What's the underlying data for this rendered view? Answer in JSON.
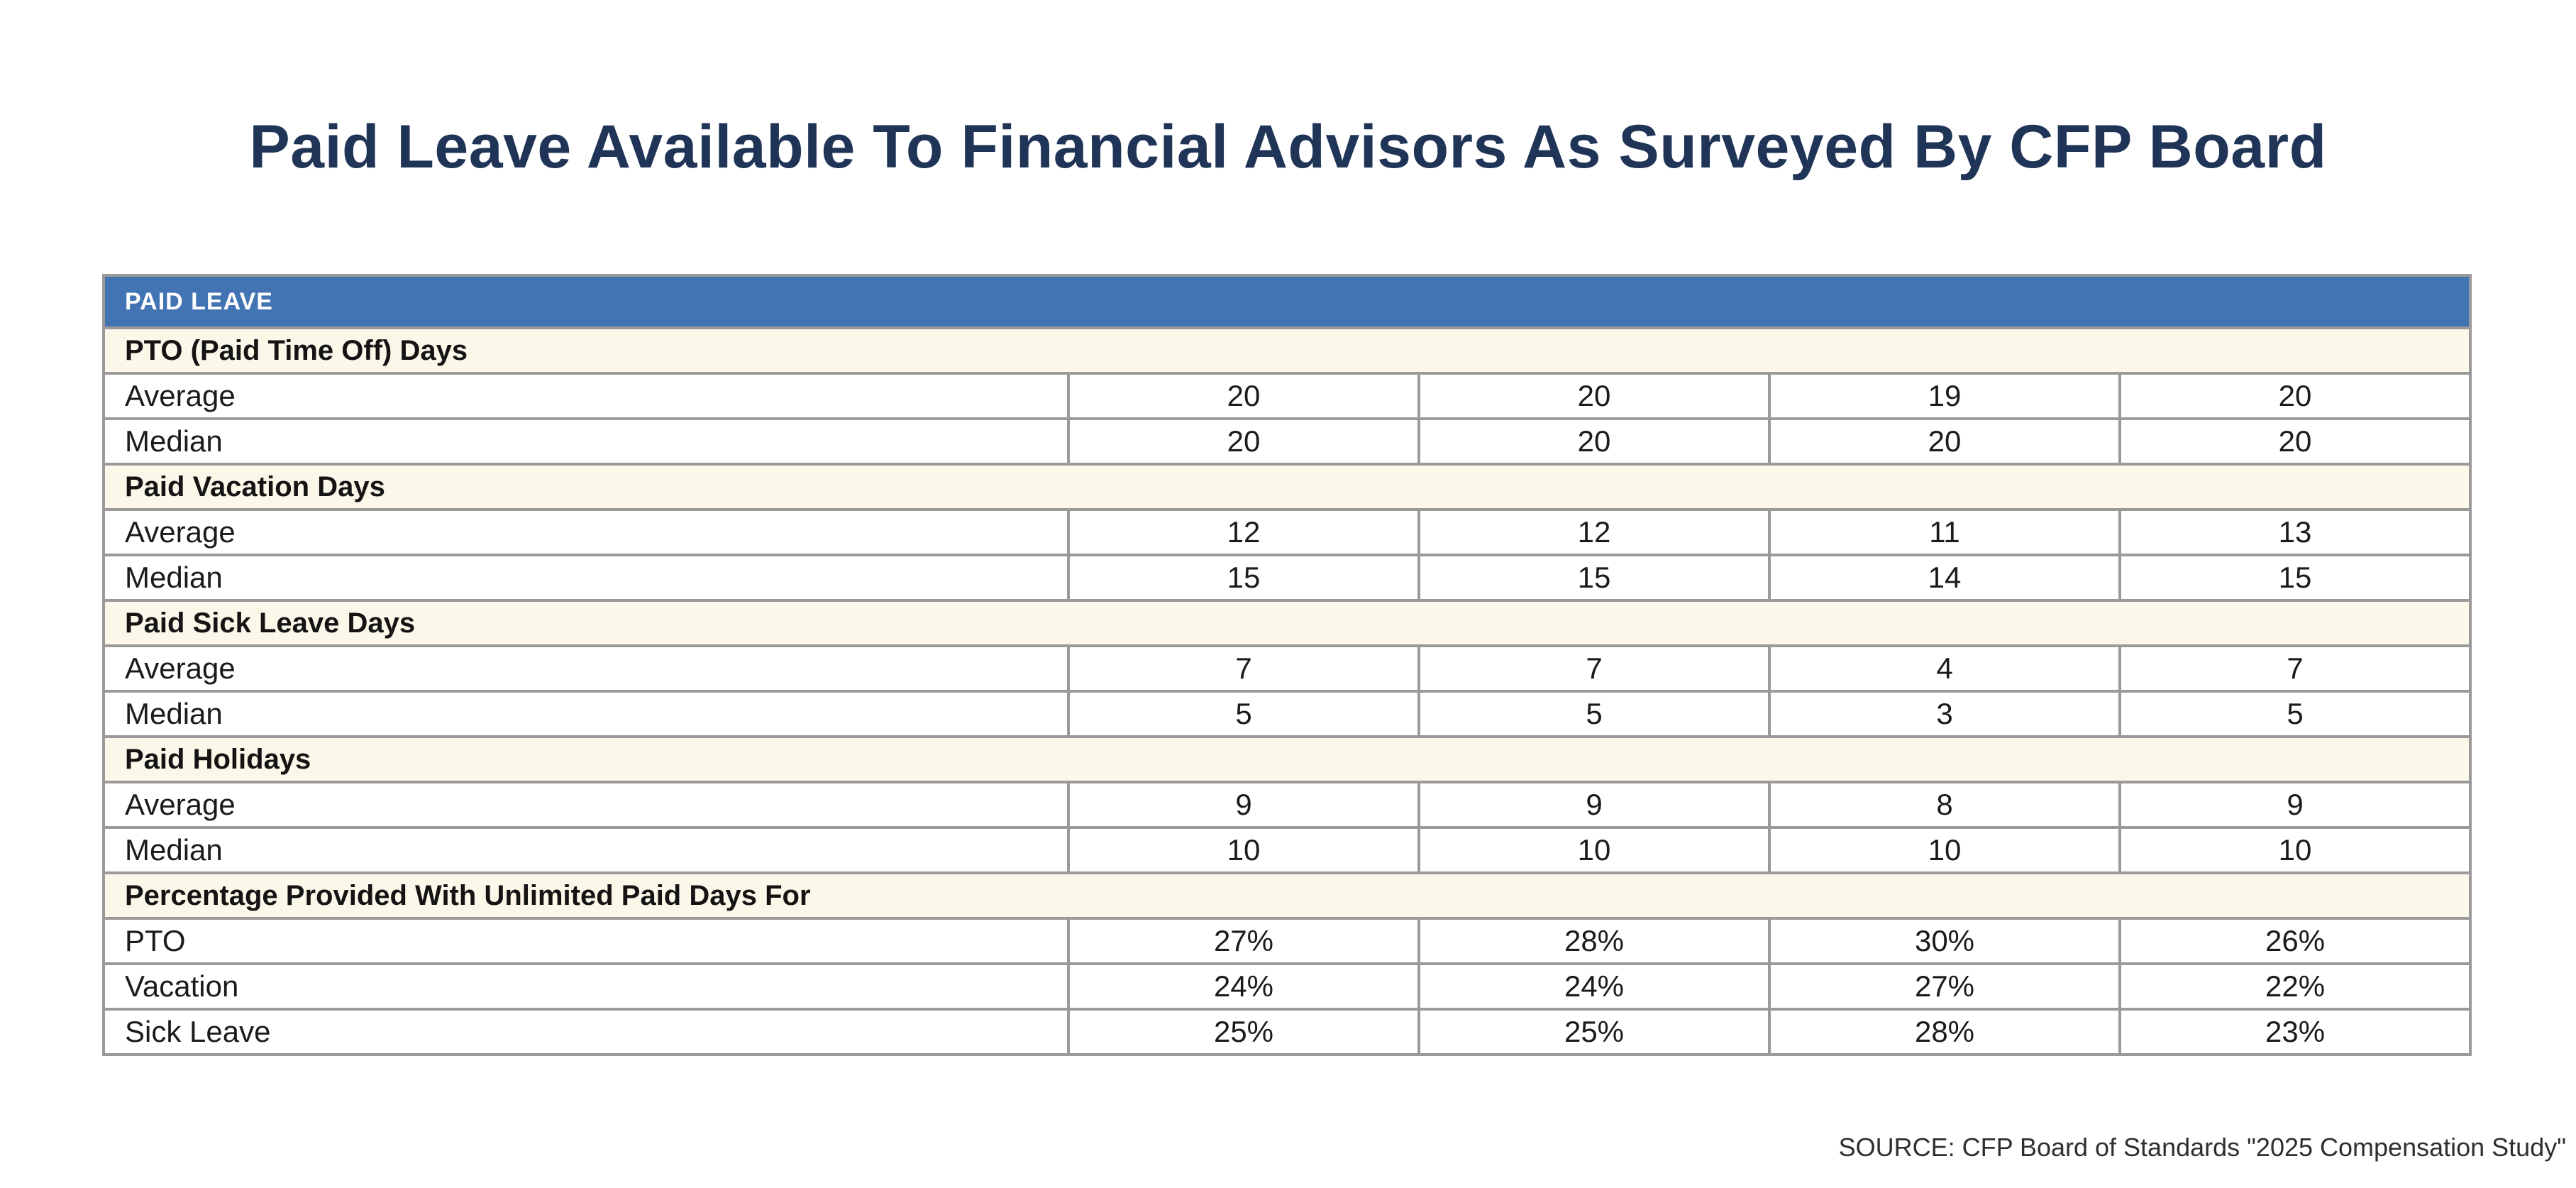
{
  "page": {
    "title": "Paid Leave Available To Financial Advisors As Surveyed By CFP Board",
    "source": "SOURCE: CFP Board of Standards \"2025 Compensation Study\""
  },
  "colors": {
    "title_navy": "#1F3456",
    "header_blue": "#4274B4",
    "header_text": "#FFFFFF",
    "section_cream": "#FBF7E9",
    "border_gray": "#9A9A9A",
    "body_text": "#1B1B1B"
  },
  "table": {
    "header": "PAID LEAVE",
    "sections": [
      {
        "label": "PTO (Paid Time Off) Days",
        "rows": [
          {
            "label": "Average",
            "values": [
              "20",
              "20",
              "19",
              "20"
            ]
          },
          {
            "label": "Median",
            "values": [
              "20",
              "20",
              "20",
              "20"
            ]
          }
        ]
      },
      {
        "label": "Paid Vacation Days",
        "rows": [
          {
            "label": "Average",
            "values": [
              "12",
              "12",
              "11",
              "13"
            ]
          },
          {
            "label": "Median",
            "values": [
              "15",
              "15",
              "14",
              "15"
            ]
          }
        ]
      },
      {
        "label": "Paid Sick Leave Days",
        "rows": [
          {
            "label": "Average",
            "values": [
              "7",
              "7",
              "4",
              "7"
            ]
          },
          {
            "label": "Median",
            "values": [
              "5",
              "5",
              "3",
              "5"
            ]
          }
        ]
      },
      {
        "label": "Paid Holidays",
        "rows": [
          {
            "label": "Average",
            "values": [
              "9",
              "9",
              "8",
              "9"
            ]
          },
          {
            "label": "Median",
            "values": [
              "10",
              "10",
              "10",
              "10"
            ]
          }
        ]
      },
      {
        "label": "Percentage Provided With Unlimited Paid Days For",
        "rows": [
          {
            "label": "PTO",
            "values": [
              "27%",
              "28%",
              "30%",
              "26%"
            ]
          },
          {
            "label": "Vacation",
            "values": [
              "24%",
              "24%",
              "27%",
              "22%"
            ]
          },
          {
            "label": "Sick Leave",
            "values": [
              "25%",
              "25%",
              "28%",
              "23%"
            ]
          }
        ]
      }
    ]
  },
  "chart_data": {
    "type": "table",
    "title": "Paid Leave Available To Financial Advisors As Surveyed By CFP Board",
    "table_header": "PAID LEAVE",
    "column_headers": [
      "",
      "",
      "",
      ""
    ],
    "sections": [
      {
        "section": "PTO (Paid Time Off) Days",
        "rows": [
          {
            "metric": "Average",
            "values": [
              20,
              20,
              19,
              20
            ]
          },
          {
            "metric": "Median",
            "values": [
              20,
              20,
              20,
              20
            ]
          }
        ]
      },
      {
        "section": "Paid Vacation Days",
        "rows": [
          {
            "metric": "Average",
            "values": [
              12,
              12,
              11,
              13
            ]
          },
          {
            "metric": "Median",
            "values": [
              15,
              15,
              14,
              15
            ]
          }
        ]
      },
      {
        "section": "Paid Sick Leave Days",
        "rows": [
          {
            "metric": "Average",
            "values": [
              7,
              7,
              4,
              7
            ]
          },
          {
            "metric": "Median",
            "values": [
              5,
              5,
              3,
              5
            ]
          }
        ]
      },
      {
        "section": "Paid Holidays",
        "rows": [
          {
            "metric": "Average",
            "values": [
              9,
              9,
              8,
              9
            ]
          },
          {
            "metric": "Median",
            "values": [
              10,
              10,
              10,
              10
            ]
          }
        ]
      },
      {
        "section": "Percentage Provided With Unlimited Paid Days For",
        "rows": [
          {
            "metric": "PTO",
            "values": [
              "27%",
              "28%",
              "30%",
              "26%"
            ]
          },
          {
            "metric": "Vacation",
            "values": [
              "24%",
              "24%",
              "27%",
              "22%"
            ]
          },
          {
            "metric": "Sick Leave",
            "values": [
              "25%",
              "25%",
              "28%",
              "23%"
            ]
          }
        ]
      }
    ],
    "source": "SOURCE: CFP Board of Standards \"2025 Compensation Study\""
  }
}
